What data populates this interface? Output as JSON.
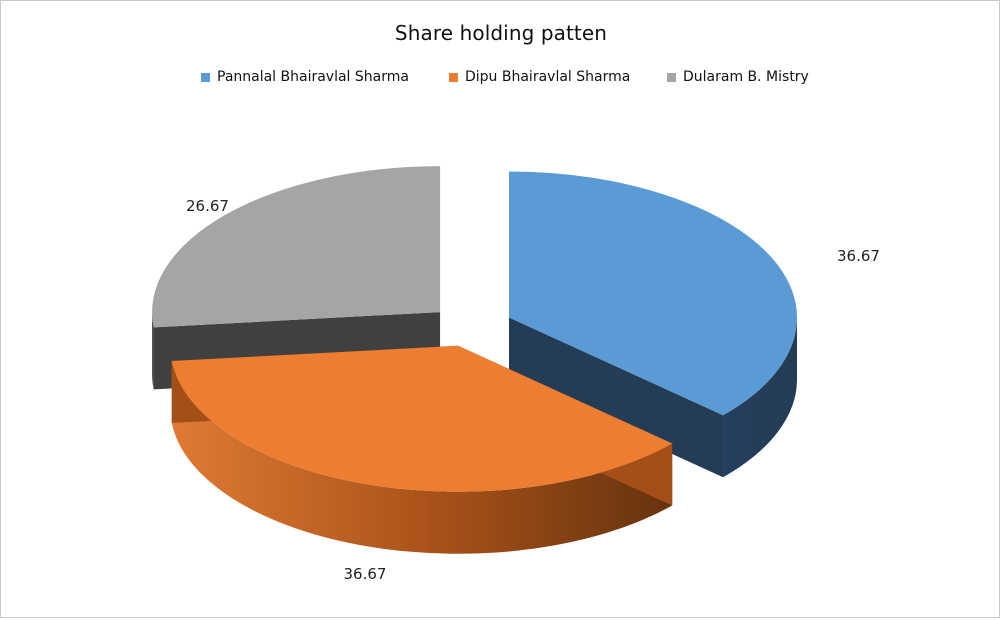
{
  "chart_data": {
    "type": "pie",
    "title": "Share holding patten",
    "legend_position": "top",
    "three_d": true,
    "exploded": true,
    "slices": [
      {
        "label": "Pannalal Bhairavlal Sharma",
        "value": 36.67,
        "color": "#5b9bd5",
        "side_color": "#243c56"
      },
      {
        "label": "Dipu Bhairavlal Sharma",
        "value": 36.67,
        "color": "#ed7d31",
        "side_color": "#a34f17"
      },
      {
        "label": "Dularam B. Mistry",
        "value": 26.67,
        "color": "#a5a5a5",
        "side_color": "#404040"
      }
    ],
    "data_labels": [
      "36.67",
      "36.67",
      "26.67"
    ]
  }
}
